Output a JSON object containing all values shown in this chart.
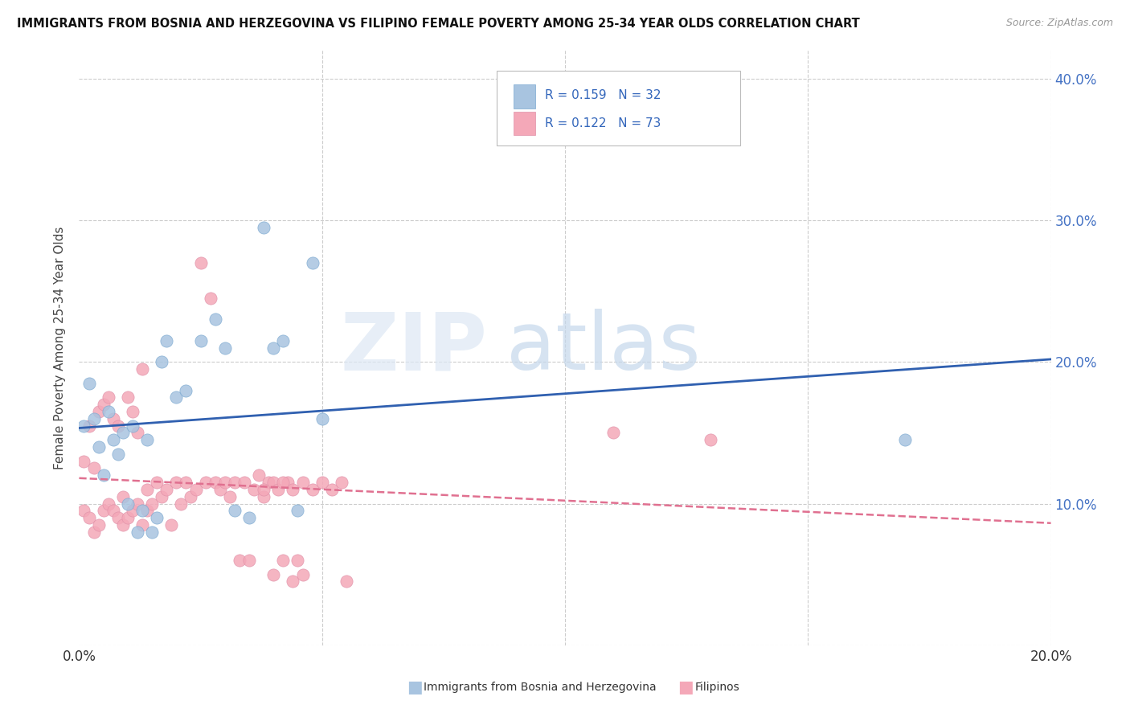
{
  "title": "IMMIGRANTS FROM BOSNIA AND HERZEGOVINA VS FILIPINO FEMALE POVERTY AMONG 25-34 YEAR OLDS CORRELATION CHART",
  "source": "Source: ZipAtlas.com",
  "ylabel": "Female Poverty Among 25-34 Year Olds",
  "xlim": [
    0.0,
    0.2
  ],
  "ylim": [
    0.0,
    0.42
  ],
  "xticks": [
    0.0,
    0.05,
    0.1,
    0.15,
    0.2
  ],
  "yticks": [
    0.0,
    0.1,
    0.2,
    0.3,
    0.4
  ],
  "color_bosnia": "#a8c4e0",
  "color_filipino": "#f4a8b8",
  "trendline_bosnia_color": "#3060b0",
  "trendline_filipino_color": "#e07090",
  "background_color": "#ffffff",
  "grid_color": "#cccccc",
  "bosnia_x": [
    0.001,
    0.002,
    0.003,
    0.004,
    0.005,
    0.006,
    0.007,
    0.008,
    0.009,
    0.01,
    0.011,
    0.012,
    0.013,
    0.014,
    0.015,
    0.016,
    0.017,
    0.018,
    0.02,
    0.022,
    0.025,
    0.028,
    0.03,
    0.032,
    0.035,
    0.038,
    0.04,
    0.042,
    0.045,
    0.048,
    0.05,
    0.17
  ],
  "bosnia_y": [
    0.155,
    0.185,
    0.16,
    0.14,
    0.12,
    0.165,
    0.145,
    0.135,
    0.15,
    0.1,
    0.155,
    0.08,
    0.095,
    0.145,
    0.08,
    0.09,
    0.2,
    0.215,
    0.175,
    0.18,
    0.215,
    0.23,
    0.21,
    0.095,
    0.09,
    0.295,
    0.21,
    0.215,
    0.095,
    0.27,
    0.16,
    0.145
  ],
  "filipino_x": [
    0.001,
    0.001,
    0.002,
    0.002,
    0.003,
    0.003,
    0.004,
    0.004,
    0.005,
    0.005,
    0.006,
    0.006,
    0.007,
    0.007,
    0.008,
    0.008,
    0.009,
    0.009,
    0.01,
    0.01,
    0.011,
    0.011,
    0.012,
    0.012,
    0.013,
    0.013,
    0.014,
    0.014,
    0.015,
    0.016,
    0.017,
    0.018,
    0.019,
    0.02,
    0.021,
    0.022,
    0.023,
    0.024,
    0.025,
    0.026,
    0.027,
    0.028,
    0.029,
    0.03,
    0.031,
    0.032,
    0.033,
    0.034,
    0.035,
    0.036,
    0.037,
    0.038,
    0.039,
    0.04,
    0.041,
    0.042,
    0.043,
    0.044,
    0.045,
    0.046,
    0.048,
    0.05,
    0.052,
    0.054,
    0.055,
    0.038,
    0.04,
    0.042,
    0.044,
    0.046,
    0.11,
    0.13
  ],
  "filipino_y": [
    0.095,
    0.13,
    0.09,
    0.155,
    0.08,
    0.125,
    0.085,
    0.165,
    0.095,
    0.17,
    0.1,
    0.175,
    0.095,
    0.16,
    0.09,
    0.155,
    0.085,
    0.105,
    0.09,
    0.175,
    0.095,
    0.165,
    0.1,
    0.15,
    0.085,
    0.195,
    0.095,
    0.11,
    0.1,
    0.115,
    0.105,
    0.11,
    0.085,
    0.115,
    0.1,
    0.115,
    0.105,
    0.11,
    0.27,
    0.115,
    0.245,
    0.115,
    0.11,
    0.115,
    0.105,
    0.115,
    0.06,
    0.115,
    0.06,
    0.11,
    0.12,
    0.105,
    0.115,
    0.115,
    0.11,
    0.06,
    0.115,
    0.11,
    0.06,
    0.115,
    0.11,
    0.115,
    0.11,
    0.115,
    0.045,
    0.11,
    0.05,
    0.115,
    0.045,
    0.05,
    0.15,
    0.145
  ]
}
